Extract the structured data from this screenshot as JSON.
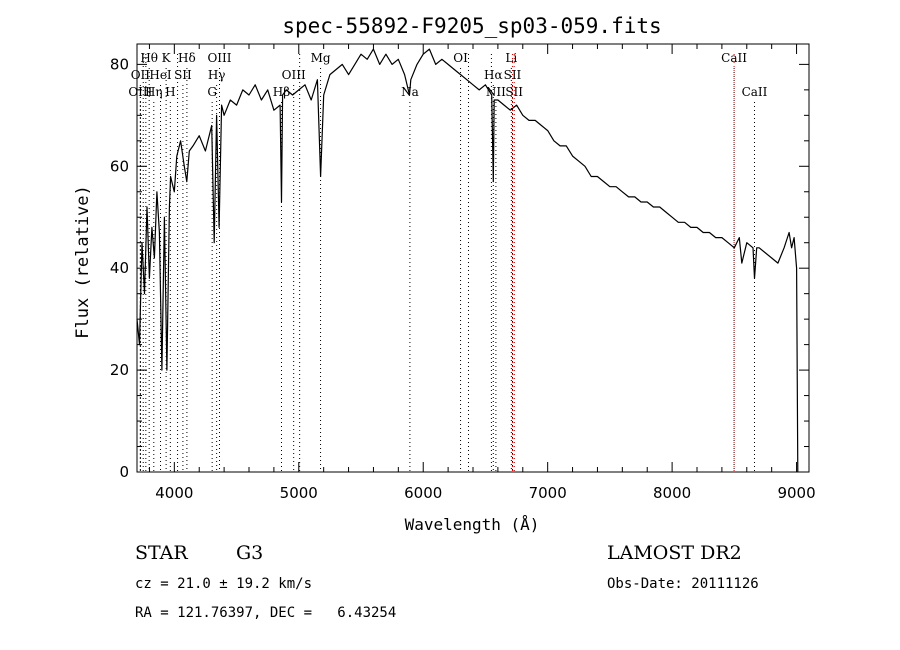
{
  "chart_data": {
    "type": "line",
    "title": "spec-55892-F9205_sp03-059.fits",
    "xlabel": "Wavelength (Å)",
    "ylabel": "Flux (relative)",
    "xlim": [
      3700,
      9100
    ],
    "ylim": [
      0,
      84
    ],
    "xticks": [
      4000,
      5000,
      6000,
      7000,
      8000,
      9000
    ],
    "yticks": [
      0,
      20,
      40,
      60,
      80
    ],
    "grid": false,
    "series": [
      {
        "x": [
          3700,
          3720,
          3740,
          3760,
          3780,
          3800,
          3820,
          3840,
          3860,
          3880,
          3900,
          3920,
          3940,
          3960,
          3970,
          3980,
          4000,
          4020,
          4050,
          4080,
          4100,
          4120,
          4150,
          4200,
          4250,
          4300,
          4320,
          4340,
          4360,
          4380,
          4400,
          4450,
          4500,
          4550,
          4600,
          4650,
          4700,
          4750,
          4800,
          4850,
          4861,
          4870,
          4900,
          4950,
          5000,
          5050,
          5100,
          5150,
          5175,
          5200,
          5250,
          5300,
          5350,
          5400,
          5450,
          5500,
          5550,
          5600,
          5650,
          5700,
          5750,
          5800,
          5850,
          5890,
          5900,
          5950,
          6000,
          6050,
          6100,
          6150,
          6200,
          6250,
          6300,
          6350,
          6400,
          6450,
          6500,
          6550,
          6563,
          6570,
          6600,
          6650,
          6700,
          6750,
          6800,
          6850,
          6900,
          6950,
          7000,
          7050,
          7100,
          7150,
          7200,
          7250,
          7300,
          7350,
          7400,
          7450,
          7500,
          7550,
          7600,
          7650,
          7700,
          7750,
          7800,
          7850,
          7900,
          7950,
          8000,
          8050,
          8100,
          8150,
          8200,
          8250,
          8300,
          8350,
          8400,
          8450,
          8500,
          8540,
          8560,
          8600,
          8650,
          8662,
          8680,
          8700,
          8750,
          8800,
          8850,
          8900,
          8940,
          8960,
          8980,
          9000,
          9010
        ],
        "y": [
          30,
          25,
          45,
          35,
          52,
          38,
          48,
          42,
          55,
          47,
          20,
          50,
          20,
          52,
          58,
          57,
          55,
          62,
          65,
          60,
          57,
          63,
          64,
          66,
          63,
          68,
          45,
          70,
          48,
          72,
          70,
          73,
          72,
          75,
          74,
          76,
          73,
          75,
          71,
          72,
          53,
          74,
          75,
          74,
          75,
          76,
          73,
          77,
          58,
          74,
          78,
          79,
          80,
          78,
          80,
          82,
          81,
          83,
          80,
          82,
          80,
          81,
          78,
          74,
          77,
          80,
          82,
          83,
          80,
          81,
          80,
          79,
          78,
          77,
          76,
          75,
          76,
          74,
          57,
          73,
          73,
          72,
          71,
          72,
          70,
          69,
          69,
          68,
          67,
          65,
          64,
          64,
          62,
          61,
          60,
          58,
          58,
          57,
          56,
          56,
          55,
          54,
          54,
          53,
          53,
          52,
          52,
          51,
          50,
          49,
          49,
          48,
          48,
          47,
          47,
          46,
          46,
          45,
          44,
          46,
          41,
          45,
          44,
          38,
          44,
          44,
          43,
          42,
          41,
          44,
          47,
          44,
          46,
          40,
          0
        ]
      }
    ],
    "lines": [
      {
        "label": "Hθ",
        "x": 3798,
        "row": 1,
        "color": "#000000"
      },
      {
        "label": "K",
        "x": 3934,
        "row": 1,
        "color": "#000000"
      },
      {
        "label": "Hδ",
        "x": 4101,
        "row": 1,
        "color": "#000000"
      },
      {
        "label": "OIII",
        "x": 4363,
        "row": 1,
        "color": "#000000"
      },
      {
        "label": "Mg",
        "x": 5175,
        "row": 1,
        "color": "#000000"
      },
      {
        "label": "OI",
        "x": 6300,
        "row": 1,
        "color": "#000000"
      },
      {
        "label": "Li",
        "x": 6708,
        "row": 1,
        "color": "#000000"
      },
      {
        "label": "CaII",
        "x": 8498,
        "row": 1,
        "color": "#000000"
      },
      {
        "label": "OII",
        "x": 3727,
        "row": 2,
        "color": "#000000"
      },
      {
        "label": "HeI",
        "x": 3889,
        "row": 2,
        "color": "#000000"
      },
      {
        "label": "SII",
        "x": 4069,
        "row": 2,
        "color": "#000000"
      },
      {
        "label": "Hγ",
        "x": 4340,
        "row": 2,
        "color": "#000000"
      },
      {
        "label": "OIII",
        "x": 4959,
        "row": 2,
        "color": "#000000"
      },
      {
        "label": "Hα",
        "x": 6563,
        "row": 2,
        "color": "#000000"
      },
      {
        "label": "SII",
        "x": 6717,
        "row": 2,
        "color": "#000000"
      },
      {
        "label": "OIII",
        "x": 3727,
        "row": 3,
        "color": "#000000"
      },
      {
        "label": "Hη",
        "x": 3835,
        "row": 3,
        "color": "#000000"
      },
      {
        "label": "H",
        "x": 3968,
        "row": 3,
        "color": "#000000"
      },
      {
        "label": "G",
        "x": 4304,
        "row": 3,
        "color": "#000000"
      },
      {
        "label": "Hβ",
        "x": 4861,
        "row": 3,
        "color": "#000000"
      },
      {
        "label": "Na",
        "x": 5893,
        "row": 3,
        "color": "#000000"
      },
      {
        "label": "NII",
        "x": 6584,
        "row": 3,
        "color": "#000000"
      },
      {
        "label": "SII",
        "x": 6731,
        "row": 3,
        "color": "#000000"
      },
      {
        "label": "CaII",
        "x": 8662,
        "row": 3,
        "color": "#000000"
      },
      {
        "label": "",
        "x": 3750,
        "row": 0,
        "color": "#000000"
      },
      {
        "label": "",
        "x": 3771,
        "row": 0,
        "color": "#000000"
      },
      {
        "label": "",
        "x": 4026,
        "row": 0,
        "color": "#000000"
      },
      {
        "label": "",
        "x": 5007,
        "row": 0,
        "color": "#000000"
      },
      {
        "label": "",
        "x": 6364,
        "row": 0,
        "color": "#000000"
      },
      {
        "label": "",
        "x": 6548,
        "row": 0,
        "color": "#000000"
      },
      {
        "label": "",
        "x": 6717,
        "row": 0,
        "color": "#cc0000"
      },
      {
        "label": "",
        "x": 6731,
        "row": 0,
        "color": "#cc0000"
      },
      {
        "label": "",
        "x": 8498,
        "row": 0,
        "color": "#cc0000"
      }
    ]
  },
  "info": {
    "class_label": "STAR",
    "subclass": "G3",
    "survey": "LAMOST DR2",
    "cz": "cz = 21.0 ± 19.2 km/s",
    "obs_date": "Obs-Date: 20111126",
    "coords": "RA = 121.76397, DEC =   6.43254"
  }
}
